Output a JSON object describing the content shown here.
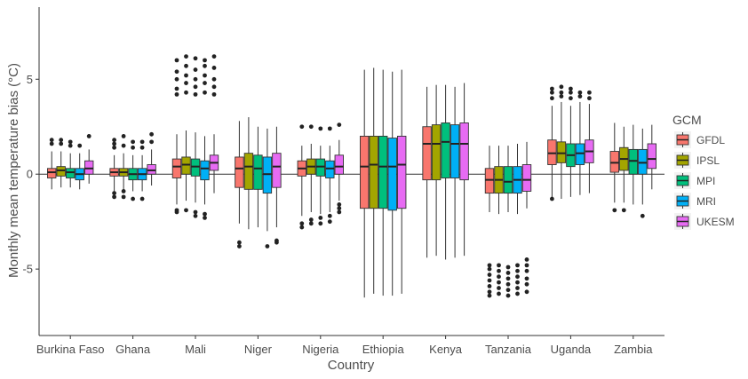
{
  "chart_data": {
    "type": "boxplot",
    "xlabel": "Country",
    "ylabel": "Monthly mean temperature bias (°C)",
    "yticks": [
      -5,
      0,
      5
    ],
    "ylim": [
      -8.5,
      8.8
    ],
    "reference_line": 0,
    "legend": {
      "title": "GCM",
      "position": "right"
    },
    "colors": {
      "GFDL": "#F8766D",
      "IPSL": "#A3A500",
      "MPI": "#00BF7D",
      "MRI": "#00B0F6",
      "UKESM": "#E76BF3"
    },
    "categories": [
      "Burkina Faso",
      "Ghana",
      "Mali",
      "Niger",
      "Nigeria",
      "Ethiopia",
      "Kenya",
      "Tanzania",
      "Uganda",
      "Zambia"
    ],
    "series": [
      {
        "name": "GFDL",
        "boxes": [
          {
            "lo": -0.8,
            "q1": -0.2,
            "med": 0.1,
            "q3": 0.3,
            "hi": 1.2,
            "outliers": [
              1.6,
              1.8
            ]
          },
          {
            "lo": -0.9,
            "q1": -0.1,
            "med": 0.1,
            "q3": 0.3,
            "hi": 1.0,
            "outliers": [
              1.4,
              1.6,
              1.8,
              -1.0,
              -1.2
            ]
          },
          {
            "lo": -1.6,
            "q1": -0.2,
            "med": 0.4,
            "q3": 0.8,
            "hi": 2.1,
            "outliers": [
              4.2,
              4.5,
              5.0,
              5.4,
              6.0,
              -1.9,
              -2.0
            ]
          },
          {
            "lo": -2.6,
            "q1": -0.7,
            "med": 0.3,
            "q3": 0.9,
            "hi": 2.8,
            "outliers": [
              -3.6,
              -3.8
            ]
          },
          {
            "lo": -2.2,
            "q1": -0.1,
            "med": 0.3,
            "q3": 0.7,
            "hi": 1.5,
            "outliers": [
              2.5,
              -2.6,
              -2.8
            ]
          },
          {
            "lo": -6.5,
            "q1": -1.8,
            "med": 0.4,
            "q3": 2.0,
            "hi": 5.5,
            "outliers": []
          },
          {
            "lo": -4.4,
            "q1": -0.3,
            "med": 1.6,
            "q3": 2.5,
            "hi": 4.6,
            "outliers": []
          },
          {
            "lo": -2.0,
            "q1": -1.0,
            "med": -0.3,
            "q3": 0.3,
            "hi": 1.5,
            "outliers": [
              -4.8,
              -5.0,
              -5.3,
              -5.6,
              -5.9,
              -6.2,
              -6.4
            ]
          },
          {
            "lo": -1.2,
            "q1": 0.5,
            "med": 1.1,
            "q3": 1.8,
            "hi": 3.6,
            "outliers": [
              4.0,
              4.3,
              4.5,
              -1.3
            ]
          },
          {
            "lo": -1.5,
            "q1": 0.1,
            "med": 0.6,
            "q3": 1.2,
            "hi": 2.7,
            "outliers": [
              -1.9
            ]
          }
        ]
      },
      {
        "name": "IPSL",
        "boxes": [
          {
            "lo": -0.7,
            "q1": -0.1,
            "med": 0.2,
            "q3": 0.4,
            "hi": 1.2,
            "outliers": [
              1.6,
              1.8
            ]
          },
          {
            "lo": -0.8,
            "q1": -0.1,
            "med": 0.1,
            "q3": 0.3,
            "hi": 1.1,
            "outliers": [
              1.5,
              2.0,
              -0.9,
              -1.2
            ]
          },
          {
            "lo": -1.4,
            "q1": 0.0,
            "med": 0.5,
            "q3": 0.9,
            "hi": 2.3,
            "outliers": [
              4.3,
              4.8,
              5.2,
              5.7,
              6.2,
              -1.9
            ]
          },
          {
            "lo": -2.9,
            "q1": -0.8,
            "med": 0.4,
            "q3": 1.1,
            "hi": 3.0,
            "outliers": []
          },
          {
            "lo": -2.0,
            "q1": 0.0,
            "med": 0.4,
            "q3": 0.8,
            "hi": 1.6,
            "outliers": [
              2.5,
              -2.4,
              -2.6
            ]
          },
          {
            "lo": -6.3,
            "q1": -1.8,
            "med": 0.5,
            "q3": 2.0,
            "hi": 5.6,
            "outliers": []
          },
          {
            "lo": -4.3,
            "q1": -0.3,
            "med": 1.6,
            "q3": 2.6,
            "hi": 4.7,
            "outliers": []
          },
          {
            "lo": -2.1,
            "q1": -1.0,
            "med": -0.3,
            "q3": 0.4,
            "hi": 1.5,
            "outliers": [
              -4.8,
              -5.1,
              -5.4,
              -5.7,
              -6.0,
              -6.3
            ]
          },
          {
            "lo": -1.3,
            "q1": 0.6,
            "med": 1.1,
            "q3": 1.7,
            "hi": 3.8,
            "outliers": [
              4.1,
              4.3,
              4.6
            ]
          },
          {
            "lo": -1.5,
            "q1": 0.2,
            "med": 0.8,
            "q3": 1.4,
            "hi": 2.5,
            "outliers": [
              -1.9
            ]
          }
        ]
      },
      {
        "name": "MPI",
        "boxes": [
          {
            "lo": -0.7,
            "q1": -0.2,
            "med": 0.1,
            "q3": 0.3,
            "hi": 1.1,
            "outliers": [
              1.5,
              1.7
            ]
          },
          {
            "lo": -0.9,
            "q1": -0.3,
            "med": 0.0,
            "q3": 0.3,
            "hi": 1.0,
            "outliers": [
              1.4,
              1.7,
              -1.3
            ]
          },
          {
            "lo": -1.5,
            "q1": -0.1,
            "med": 0.4,
            "q3": 0.8,
            "hi": 2.2,
            "outliers": [
              4.2,
              4.6,
              5.0,
              5.5,
              6.1,
              -2.0,
              -2.2
            ]
          },
          {
            "lo": -2.8,
            "q1": -0.8,
            "med": 0.3,
            "q3": 1.0,
            "hi": 2.5,
            "outliers": []
          },
          {
            "lo": -2.1,
            "q1": -0.1,
            "med": 0.4,
            "q3": 0.8,
            "hi": 1.5,
            "outliers": [
              2.4,
              -2.3,
              -2.6
            ]
          },
          {
            "lo": -6.4,
            "q1": -1.8,
            "med": 0.4,
            "q3": 2.0,
            "hi": 5.5,
            "outliers": []
          },
          {
            "lo": -4.5,
            "q1": -0.2,
            "med": 1.7,
            "q3": 2.7,
            "hi": 4.7,
            "outliers": []
          },
          {
            "lo": -2.0,
            "q1": -1.0,
            "med": -0.4,
            "q3": 0.4,
            "hi": 1.5,
            "outliers": [
              -4.9,
              -5.2,
              -5.5,
              -5.8,
              -6.1,
              -6.4
            ]
          },
          {
            "lo": -1.2,
            "q1": 0.4,
            "med": 1.0,
            "q3": 1.6,
            "hi": 3.6,
            "outliers": [
              4.0,
              4.3,
              4.5
            ]
          },
          {
            "lo": -1.6,
            "q1": 0.0,
            "med": 0.7,
            "q3": 1.3,
            "hi": 2.6,
            "outliers": []
          }
        ]
      },
      {
        "name": "MRI",
        "boxes": [
          {
            "lo": -0.8,
            "q1": -0.3,
            "med": 0.0,
            "q3": 0.3,
            "hi": 1.1,
            "outliers": [
              1.5
            ]
          },
          {
            "lo": -0.9,
            "q1": -0.3,
            "med": 0.0,
            "q3": 0.3,
            "hi": 1.0,
            "outliers": [
              1.4,
              1.7,
              -1.3
            ]
          },
          {
            "lo": -1.6,
            "q1": -0.3,
            "med": 0.3,
            "q3": 0.7,
            "hi": 2.0,
            "outliers": [
              4.3,
              4.8,
              5.2,
              5.7,
              6.0,
              -2.1,
              -2.3
            ]
          },
          {
            "lo": -3.0,
            "q1": -1.0,
            "med": 0.0,
            "q3": 0.9,
            "hi": 2.4,
            "outliers": [
              -3.8
            ]
          },
          {
            "lo": -2.0,
            "q1": -0.2,
            "med": 0.3,
            "q3": 0.7,
            "hi": 1.5,
            "outliers": [
              2.4,
              -2.2,
              -2.5
            ]
          },
          {
            "lo": -6.4,
            "q1": -1.9,
            "med": 0.4,
            "q3": 1.9,
            "hi": 5.4,
            "outliers": []
          },
          {
            "lo": -4.4,
            "q1": -0.2,
            "med": 1.6,
            "q3": 2.6,
            "hi": 4.6,
            "outliers": []
          },
          {
            "lo": -2.1,
            "q1": -1.0,
            "med": -0.3,
            "q3": 0.4,
            "hi": 1.6,
            "outliers": [
              -4.8,
              -5.1,
              -5.4,
              -5.7,
              -6.0,
              -6.3
            ]
          },
          {
            "lo": -1.1,
            "q1": 0.5,
            "med": 1.1,
            "q3": 1.6,
            "hi": 3.8,
            "outliers": [
              4.1,
              4.3
            ]
          },
          {
            "lo": -1.6,
            "q1": 0.0,
            "med": 0.6,
            "q3": 1.3,
            "hi": 2.4,
            "outliers": [
              -2.2
            ]
          }
        ]
      },
      {
        "name": "UKESM",
        "boxes": [
          {
            "lo": -0.5,
            "q1": 0.0,
            "med": 0.3,
            "q3": 0.7,
            "hi": 1.3,
            "outliers": [
              2.0
            ]
          },
          {
            "lo": -0.6,
            "q1": 0.0,
            "med": 0.2,
            "q3": 0.5,
            "hi": 1.3,
            "outliers": [
              1.7,
              2.1
            ]
          },
          {
            "lo": -1.0,
            "q1": 0.2,
            "med": 0.6,
            "q3": 1.0,
            "hi": 2.1,
            "outliers": [
              4.2,
              4.6,
              5.0,
              5.6,
              6.2
            ]
          },
          {
            "lo": -2.8,
            "q1": -0.7,
            "med": 0.4,
            "q3": 1.1,
            "hi": 2.5,
            "outliers": [
              -3.5,
              -3.6
            ]
          },
          {
            "lo": -1.4,
            "q1": 0.0,
            "med": 0.4,
            "q3": 1.0,
            "hi": 1.8,
            "outliers": [
              2.6,
              -1.6,
              -1.8,
              -2.0
            ]
          },
          {
            "lo": -6.3,
            "q1": -1.8,
            "med": 0.5,
            "q3": 2.0,
            "hi": 5.5,
            "outliers": []
          },
          {
            "lo": -4.3,
            "q1": -0.3,
            "med": 1.6,
            "q3": 2.7,
            "hi": 4.8,
            "outliers": []
          },
          {
            "lo": -1.8,
            "q1": -0.9,
            "med": -0.3,
            "q3": 0.5,
            "hi": 1.7,
            "outliers": [
              -4.5,
              -4.8,
              -5.1,
              -5.5,
              -5.8,
              -6.2
            ]
          },
          {
            "lo": -1.0,
            "q1": 0.6,
            "med": 1.2,
            "q3": 1.8,
            "hi": 3.7,
            "outliers": [
              4.0,
              4.3
            ]
          },
          {
            "lo": -0.8,
            "q1": 0.3,
            "med": 0.8,
            "q3": 1.6,
            "hi": 2.6,
            "outliers": []
          }
        ]
      }
    ]
  }
}
